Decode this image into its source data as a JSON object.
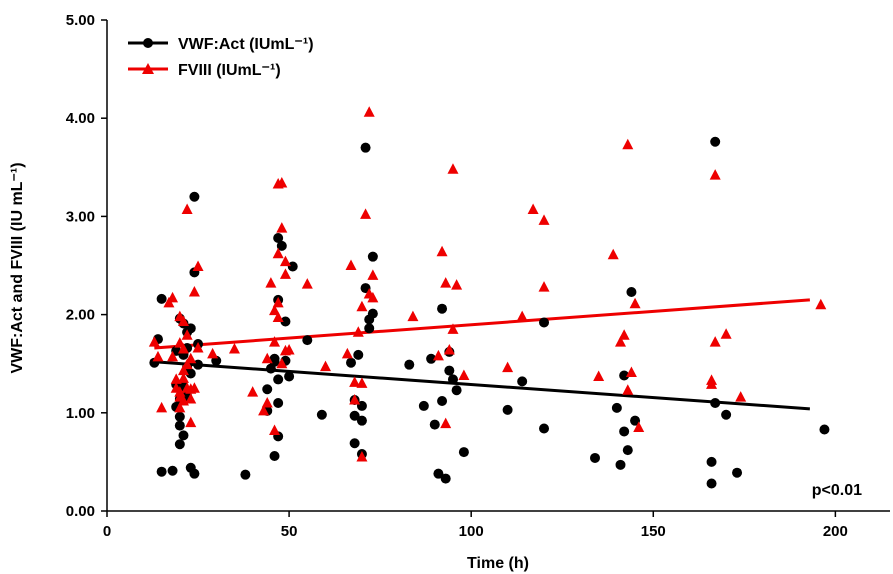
{
  "chart_data": {
    "type": "scatter",
    "xlabel": "Time (h)",
    "ylabel": "VWF:Act and FVIII (IU mL⁻¹)",
    "xlim": [
      0,
      215
    ],
    "ylim": [
      0,
      5
    ],
    "xticks": [
      0,
      50,
      100,
      150,
      200
    ],
    "xtick_labels": [
      "0",
      "50",
      "100",
      "150",
      "200"
    ],
    "yticks": [
      0,
      1,
      2,
      3,
      4,
      5
    ],
    "ytick_labels": [
      "0.00",
      "1.00",
      "2.00",
      "3.00",
      "4.00",
      "5.00"
    ],
    "legend_position": "top-left",
    "grid": false,
    "annotation": "p<0.01",
    "series": [
      {
        "name": "VWF:Act (IUmL⁻¹)",
        "color": "#000000",
        "marker": "circle",
        "points": [
          [
            13,
            1.51
          ],
          [
            14,
            1.75
          ],
          [
            15,
            2.16
          ],
          [
            15,
            0.4
          ],
          [
            18,
            0.41
          ],
          [
            19,
            1.63
          ],
          [
            19,
            1.29
          ],
          [
            19,
            1.06
          ],
          [
            20,
            1.96
          ],
          [
            20,
            1.14
          ],
          [
            20,
            0.96
          ],
          [
            20,
            0.87
          ],
          [
            20,
            0.68
          ],
          [
            21,
            1.91
          ],
          [
            21,
            1.59
          ],
          [
            21,
            1.27
          ],
          [
            21,
            0.77
          ],
          [
            22,
            1.47
          ],
          [
            22,
            1.82
          ],
          [
            22,
            1.17
          ],
          [
            22,
            1.66
          ],
          [
            23,
            1.86
          ],
          [
            23,
            1.4
          ],
          [
            23,
            0.44
          ],
          [
            24,
            0.38
          ],
          [
            24,
            3.2
          ],
          [
            24,
            2.43
          ],
          [
            25,
            1.7
          ],
          [
            25,
            1.49
          ],
          [
            30,
            1.53
          ],
          [
            38,
            0.37
          ],
          [
            44,
            1.02
          ],
          [
            44,
            1.24
          ],
          [
            45,
            1.45
          ],
          [
            46,
            1.55
          ],
          [
            46,
            1.52
          ],
          [
            46,
            0.56
          ],
          [
            47,
            2.15
          ],
          [
            47,
            1.34
          ],
          [
            47,
            1.1
          ],
          [
            47,
            0.76
          ],
          [
            47,
            2.78
          ],
          [
            48,
            2.7
          ],
          [
            49,
            1.53
          ],
          [
            49,
            1.93
          ],
          [
            50,
            1.37
          ],
          [
            51,
            2.49
          ],
          [
            55,
            1.74
          ],
          [
            59,
            0.98
          ],
          [
            67,
            1.51
          ],
          [
            68,
            1.13
          ],
          [
            68,
            0.97
          ],
          [
            68,
            0.69
          ],
          [
            69,
            1.59
          ],
          [
            70,
            1.07
          ],
          [
            70,
            0.92
          ],
          [
            70,
            0.58
          ],
          [
            71,
            2.27
          ],
          [
            71,
            3.7
          ],
          [
            72,
            1.95
          ],
          [
            72,
            1.86
          ],
          [
            73,
            2.59
          ],
          [
            73,
            2.01
          ],
          [
            83,
            1.49
          ],
          [
            87,
            1.07
          ],
          [
            89,
            1.55
          ],
          [
            90,
            0.88
          ],
          [
            91,
            0.38
          ],
          [
            92,
            1.12
          ],
          [
            92,
            2.06
          ],
          [
            93,
            0.33
          ],
          [
            94,
            1.43
          ],
          [
            94,
            1.62
          ],
          [
            95,
            1.34
          ],
          [
            96,
            1.23
          ],
          [
            98,
            0.6
          ],
          [
            110,
            1.03
          ],
          [
            114,
            1.32
          ],
          [
            120,
            1.92
          ],
          [
            120,
            0.84
          ],
          [
            134,
            0.54
          ],
          [
            140,
            1.05
          ],
          [
            141,
            0.47
          ],
          [
            142,
            1.38
          ],
          [
            142,
            0.81
          ],
          [
            144,
            2.23
          ],
          [
            145,
            0.92
          ],
          [
            166,
            0.5
          ],
          [
            166,
            0.28
          ],
          [
            167,
            3.76
          ],
          [
            167,
            1.1
          ],
          [
            170,
            0.98
          ],
          [
            173,
            0.39
          ],
          [
            197,
            0.83
          ],
          [
            143,
            0.62
          ]
        ],
        "trend": {
          "x": [
            13,
            193
          ],
          "y": [
            1.52,
            1.04
          ]
        }
      },
      {
        "name": "FVIII (IUmL⁻¹)",
        "color": "#ee0000",
        "marker": "triangle",
        "points": [
          [
            13,
            1.72
          ],
          [
            14,
            1.57
          ],
          [
            15,
            1.05
          ],
          [
            17,
            2.12
          ],
          [
            18,
            2.17
          ],
          [
            18,
            1.57
          ],
          [
            19,
            1.34
          ],
          [
            19,
            1.25
          ],
          [
            20,
            1.98
          ],
          [
            20,
            1.71
          ],
          [
            20,
            1.21
          ],
          [
            20,
            1.16
          ],
          [
            20,
            1.05
          ],
          [
            21,
            1.93
          ],
          [
            21,
            1.65
          ],
          [
            21,
            1.43
          ],
          [
            21,
            1.35
          ],
          [
            21,
            1.12
          ],
          [
            22,
            3.07
          ],
          [
            22,
            1.79
          ],
          [
            22,
            1.49
          ],
          [
            22,
            1.25
          ],
          [
            23,
            1.55
          ],
          [
            23,
            1.24
          ],
          [
            23,
            1.14
          ],
          [
            23,
            0.9
          ],
          [
            24,
            2.23
          ],
          [
            24,
            1.25
          ],
          [
            25,
            2.49
          ],
          [
            25,
            1.66
          ],
          [
            29,
            1.6
          ],
          [
            35,
            1.65
          ],
          [
            40,
            1.21
          ],
          [
            43,
            1.02
          ],
          [
            44,
            1.55
          ],
          [
            44,
            1.1
          ],
          [
            45,
            2.32
          ],
          [
            46,
            2.04
          ],
          [
            46,
            1.72
          ],
          [
            46,
            0.82
          ],
          [
            47,
            3.33
          ],
          [
            47,
            2.62
          ],
          [
            47,
            2.12
          ],
          [
            47,
            1.97
          ],
          [
            48,
            3.34
          ],
          [
            48,
            2.88
          ],
          [
            48,
            1.5
          ],
          [
            49,
            2.54
          ],
          [
            49,
            2.41
          ],
          [
            49,
            1.63
          ],
          [
            50,
            1.64
          ],
          [
            55,
            2.31
          ],
          [
            60,
            1.47
          ],
          [
            66,
            1.6
          ],
          [
            67,
            2.5
          ],
          [
            68,
            1.31
          ],
          [
            68,
            1.13
          ],
          [
            69,
            1.82
          ],
          [
            70,
            0.55
          ],
          [
            70,
            1.3
          ],
          [
            70,
            2.08
          ],
          [
            71,
            3.02
          ],
          [
            72,
            4.06
          ],
          [
            72,
            2.21
          ],
          [
            73,
            2.4
          ],
          [
            73,
            2.17
          ],
          [
            84,
            1.98
          ],
          [
            91,
            1.58
          ],
          [
            92,
            2.64
          ],
          [
            93,
            0.89
          ],
          [
            93,
            2.32
          ],
          [
            94,
            1.64
          ],
          [
            95,
            3.48
          ],
          [
            95,
            1.85
          ],
          [
            96,
            2.3
          ],
          [
            98,
            1.38
          ],
          [
            110,
            1.46
          ],
          [
            114,
            1.98
          ],
          [
            117,
            3.07
          ],
          [
            120,
            2.96
          ],
          [
            120,
            2.28
          ],
          [
            135,
            1.37
          ],
          [
            139,
            2.61
          ],
          [
            141,
            1.72
          ],
          [
            142,
            1.79
          ],
          [
            143,
            1.23
          ],
          [
            143,
            3.73
          ],
          [
            144,
            1.41
          ],
          [
            145,
            2.11
          ],
          [
            146,
            0.85
          ],
          [
            166,
            1.33
          ],
          [
            166,
            1.29
          ],
          [
            167,
            1.72
          ],
          [
            167,
            3.42
          ],
          [
            170,
            1.8
          ],
          [
            174,
            1.16
          ],
          [
            196,
            2.1
          ]
        ],
        "trend": {
          "x": [
            13,
            193
          ],
          "y": [
            1.66,
            2.15
          ]
        }
      }
    ]
  }
}
